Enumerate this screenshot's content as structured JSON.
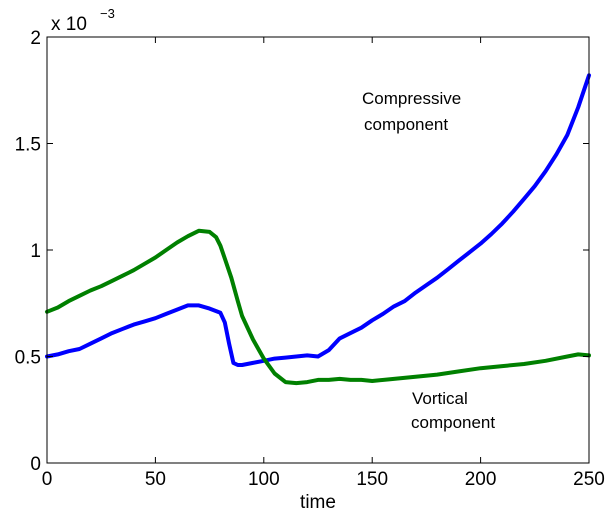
{
  "chart_data": {
    "type": "line",
    "xlabel": "time",
    "ylabel": "",
    "xlim": [
      0,
      250
    ],
    "ylim": [
      0,
      0.002
    ],
    "xticks": [
      "0",
      "50",
      "100",
      "150",
      "200",
      "250"
    ],
    "yticks": [
      "0",
      "0.5",
      "1",
      "1.5",
      "2"
    ],
    "y_exponent": {
      "prefix": "x 10",
      "power": "−3"
    },
    "grid": false,
    "series": [
      {
        "color": "#0000ff",
        "x": [
          0,
          5,
          10,
          15,
          20,
          25,
          30,
          35,
          40,
          45,
          50,
          55,
          60,
          65,
          70,
          75,
          80,
          82,
          84,
          86,
          88,
          90,
          95,
          100,
          105,
          110,
          115,
          120,
          125,
          130,
          135,
          140,
          145,
          150,
          155,
          160,
          165,
          170,
          175,
          180,
          185,
          190,
          195,
          200,
          205,
          210,
          215,
          220,
          225,
          230,
          235,
          240,
          245,
          250
        ],
        "y": [
          0.0005,
          0.00051,
          0.000525,
          0.000535,
          0.00056,
          0.000585,
          0.00061,
          0.00063,
          0.00065,
          0.000665,
          0.00068,
          0.0007,
          0.00072,
          0.00074,
          0.00074,
          0.000725,
          0.000705,
          0.00066,
          0.00056,
          0.00047,
          0.00046,
          0.00046,
          0.00047,
          0.00048,
          0.00049,
          0.000495,
          0.0005,
          0.000505,
          0.0005,
          0.00053,
          0.000585,
          0.00061,
          0.000635,
          0.00067,
          0.0007,
          0.000735,
          0.00076,
          0.0008,
          0.000835,
          0.00087,
          0.00091,
          0.00095,
          0.00099,
          0.00103,
          0.001075,
          0.001125,
          0.00118,
          0.00124,
          0.0013,
          0.00137,
          0.00145,
          0.00154,
          0.00167,
          0.00182
        ]
      },
      {
        "color": "#008000",
        "x": [
          0,
          5,
          10,
          15,
          20,
          25,
          30,
          35,
          40,
          45,
          50,
          55,
          60,
          65,
          70,
          75,
          78,
          80,
          82,
          85,
          88,
          90,
          95,
          100,
          105,
          110,
          115,
          120,
          125,
          130,
          135,
          140,
          145,
          150,
          160,
          170,
          180,
          190,
          200,
          210,
          220,
          230,
          240,
          245,
          250
        ],
        "y": [
          0.00071,
          0.00073,
          0.00076,
          0.000785,
          0.00081,
          0.00083,
          0.000855,
          0.00088,
          0.000905,
          0.000935,
          0.000965,
          0.001,
          0.001035,
          0.001065,
          0.00109,
          0.001085,
          0.00106,
          0.00102,
          0.00096,
          0.00087,
          0.00076,
          0.00069,
          0.00058,
          0.00049,
          0.00042,
          0.00038,
          0.000375,
          0.00038,
          0.00039,
          0.00039,
          0.000395,
          0.00039,
          0.00039,
          0.000385,
          0.000395,
          0.000405,
          0.000415,
          0.00043,
          0.000445,
          0.000455,
          0.000465,
          0.00048,
          0.0005,
          0.00051,
          0.000505
        ]
      }
    ],
    "annotations": [
      {
        "lines": [
          "Compressive",
          "component"
        ],
        "x": 155,
        "y": 0.00165
      },
      {
        "lines": [
          "Vortical",
          "component"
        ],
        "x": 175,
        "y": 0.00028
      }
    ]
  }
}
